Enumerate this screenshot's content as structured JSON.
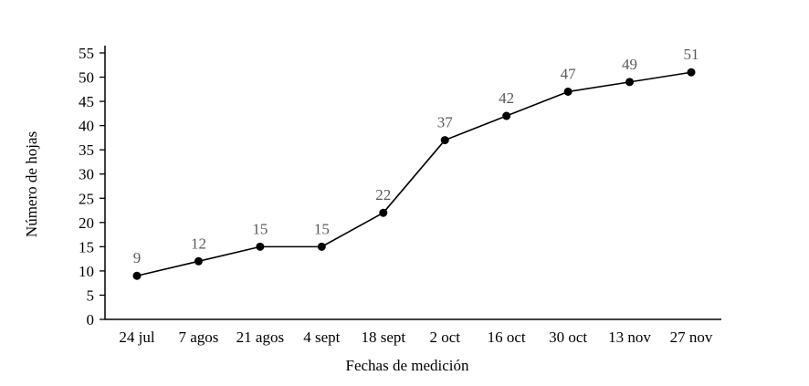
{
  "chart_data": {
    "type": "line",
    "categories": [
      "24 jul",
      "7 agos",
      "21 agos",
      "4 sept",
      "18 sept",
      "2 oct",
      "16 oct",
      "30 oct",
      "13 nov",
      "27 nov"
    ],
    "values": [
      9,
      12,
      15,
      15,
      22,
      37,
      42,
      47,
      49,
      51
    ],
    "title": "",
    "xlabel": "Fechas de medición",
    "ylabel": "Número de hojas",
    "ylim": [
      0,
      55
    ],
    "ytick_step": 5,
    "grid": false,
    "legend": "none",
    "line_color": "#000000",
    "marker_color": "#000000",
    "axis_color": "#000000",
    "tick_label_color": "#000000",
    "data_label_color": "#595959",
    "show_data_labels": true
  }
}
